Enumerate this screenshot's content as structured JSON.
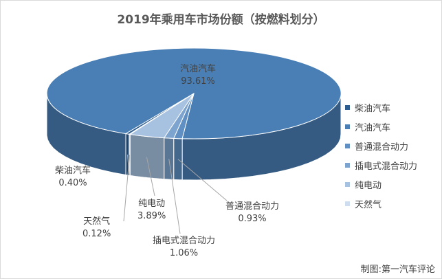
{
  "chart_data": {
    "type": "pie",
    "title": "2019年乘用车市场份额（按燃料划分）",
    "series": [
      {
        "name": "柴油汽车",
        "value": 0.4,
        "label": "0.40%",
        "color": "#2e5d8f"
      },
      {
        "name": "汽油汽车",
        "value": 93.61,
        "label": "93.61%",
        "color": "#4a7fb6"
      },
      {
        "name": "普通混合动力",
        "value": 0.93,
        "label": "0.93%",
        "color": "#5f8fc3"
      },
      {
        "name": "插电式混合动力",
        "value": 1.06,
        "label": "1.06%",
        "color": "#7da4cf"
      },
      {
        "name": "纯电动",
        "value": 3.89,
        "label": "3.89%",
        "color": "#a7c2e1"
      },
      {
        "name": "天然气",
        "value": 0.12,
        "label": "0.12%",
        "color": "#cfdeef"
      }
    ],
    "legend_position": "right"
  },
  "credit": "制图:第一汽车评论"
}
